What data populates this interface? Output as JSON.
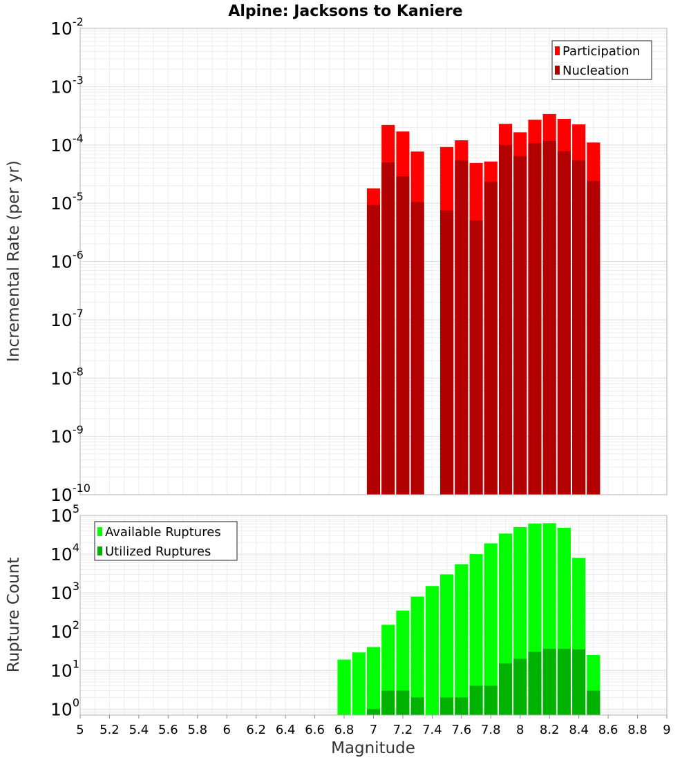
{
  "title": "Alpine: Jacksons to Kaniere",
  "chart_data": [
    {
      "type": "bar",
      "ylabel": "Incremental Rate (per yr)",
      "yscale": "log",
      "ylim": [
        1e-10,
        0.01
      ],
      "y_tick_exponents": [
        "-10",
        "-9",
        "-8",
        "-7",
        "-6",
        "-5",
        "-4",
        "-3",
        "-2"
      ],
      "y_tick_base": "10",
      "xlim": [
        5,
        9
      ],
      "grid": true,
      "legend_position": "top-right",
      "series": [
        {
          "name": "Participation",
          "color": "#ff0000",
          "x": [
            7.0,
            7.1,
            7.2,
            7.3,
            7.5,
            7.6,
            7.7,
            7.8,
            7.9,
            8.0,
            8.1,
            8.2,
            8.3,
            8.4,
            8.5
          ],
          "values": [
            1.8e-05,
            0.00022,
            0.00017,
            7.7e-05,
            9.2e-05,
            0.00012,
            4.9e-05,
            5.2e-05,
            0.00023,
            0.000165,
            0.00027,
            0.00034,
            0.00028,
            0.000225,
            0.00011
          ]
        },
        {
          "name": "Nucleation",
          "color": "#b20000",
          "x": [
            7.0,
            7.1,
            7.2,
            7.3,
            7.5,
            7.6,
            7.7,
            7.8,
            7.9,
            8.0,
            8.1,
            8.2,
            8.3,
            8.4,
            8.5
          ],
          "values": [
            9.3e-06,
            5e-05,
            2.9e-05,
            1.05e-05,
            7.5e-06,
            5.4e-05,
            5.1e-06,
            2.35e-05,
            0.0001,
            6.4e-05,
            0.000107,
            0.000117,
            7.8e-05,
            5.4e-05,
            2.4e-05
          ]
        }
      ]
    },
    {
      "type": "bar",
      "ylabel": "Rupture Count",
      "xlabel": "Magnitude",
      "yscale": "log",
      "ylim": [
        0.7,
        100000
      ],
      "y_tick_exponents": [
        "0",
        "1",
        "2",
        "3",
        "4",
        "5"
      ],
      "y_tick_base": "10",
      "xlim": [
        5,
        9
      ],
      "x_ticks": [
        "5",
        "5.2",
        "5.4",
        "5.6",
        "5.8",
        "6",
        "6.2",
        "6.4",
        "6.6",
        "6.8",
        "7",
        "7.2",
        "7.4",
        "7.6",
        "7.8",
        "8",
        "8.2",
        "8.4",
        "8.6",
        "8.8",
        "9"
      ],
      "grid": true,
      "legend_position": "top-left",
      "series": [
        {
          "name": "Available Ruptures",
          "color": "#00ff00",
          "x": [
            6.8,
            6.9,
            7.0,
            7.1,
            7.2,
            7.3,
            7.4,
            7.5,
            7.6,
            7.7,
            7.8,
            7.9,
            8.0,
            8.1,
            8.2,
            8.3,
            8.4,
            8.5
          ],
          "values": [
            19,
            29,
            40,
            150,
            350,
            800,
            1500,
            3000,
            5500,
            10000,
            19000,
            34000,
            50000,
            62000,
            63000,
            48000,
            8000,
            25
          ]
        },
        {
          "name": "Utilized Ruptures",
          "color": "#00b200",
          "x": [
            7.0,
            7.1,
            7.2,
            7.3,
            7.5,
            7.6,
            7.7,
            7.8,
            7.9,
            8.0,
            8.1,
            8.2,
            8.3,
            8.4,
            8.5
          ],
          "values": [
            1,
            3,
            3,
            2,
            2,
            2,
            4,
            4,
            15,
            20,
            30,
            36,
            36,
            35,
            3
          ]
        }
      ]
    }
  ]
}
